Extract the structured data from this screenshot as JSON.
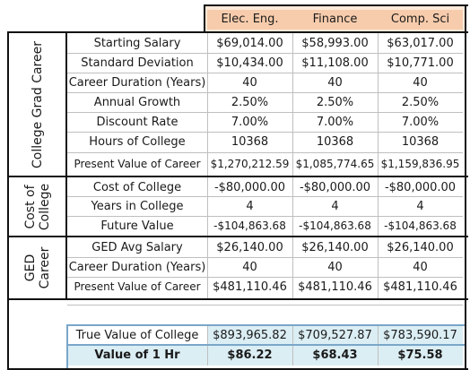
{
  "header": {
    "cols": [
      "Elec. Eng.",
      "Finance",
      "Comp. Sci"
    ]
  },
  "sections": [
    {
      "name": "College Grad Career",
      "rows": [
        {
          "label": "Starting Salary",
          "values": [
            "$69,014.00",
            "$58,993.00",
            "$63,017.00"
          ]
        },
        {
          "label": "Standard Deviation",
          "values": [
            "$10,434.00",
            "$11,108.00",
            "$10,771.00"
          ]
        },
        {
          "label": "Career Duration (Years)",
          "values": [
            "40",
            "40",
            "40"
          ]
        },
        {
          "label": "Annual Growth",
          "values": [
            "2.50%",
            "2.50%",
            "2.50%"
          ]
        },
        {
          "label": "Discount Rate",
          "values": [
            "7.00%",
            "7.00%",
            "7.00%"
          ]
        },
        {
          "label": "Hours of College",
          "values": [
            "10368",
            "10368",
            "10368"
          ]
        },
        {
          "label": "Present Value of Career",
          "values": [
            "$1,270,212.59",
            "$1,085,774.65",
            "$1,159,836.95"
          ]
        }
      ]
    },
    {
      "name": "Cost of College",
      "rows": [
        {
          "label": "Cost of College",
          "values": [
            "-$80,000.00",
            "-$80,000.00",
            "-$80,000.00"
          ]
        },
        {
          "label": "Years in College",
          "values": [
            "4",
            "4",
            "4"
          ]
        },
        {
          "label": "Future Value",
          "values": [
            "-$104,863.68",
            "-$104,863.68",
            "-$104,863.68"
          ]
        }
      ]
    },
    {
      "name": "GED Career",
      "rows": [
        {
          "label": "GED Avg Salary",
          "values": [
            "$26,140.00",
            "$26,140.00",
            "$26,140.00"
          ]
        },
        {
          "label": "Career Duration (Years)",
          "values": [
            "40",
            "40",
            "40"
          ]
        },
        {
          "label": "Present Value of Career",
          "values": [
            "$481,110.46",
            "$481,110.46",
            "$481,110.46"
          ]
        }
      ]
    }
  ],
  "summary": {
    "true_value": {
      "label": "True Value of College",
      "values": [
        "$893,965.82",
        "$709,527.87",
        "$783,590.17"
      ]
    },
    "value_hr": {
      "label": "Value of 1 Hr",
      "values": [
        "$86.22",
        "$68.43",
        "$75.58"
      ]
    }
  },
  "colors": {
    "header_fill": "#fde9d9",
    "header_inner_fill": "#f7ccac",
    "summary_fill": "#dbeef4"
  }
}
